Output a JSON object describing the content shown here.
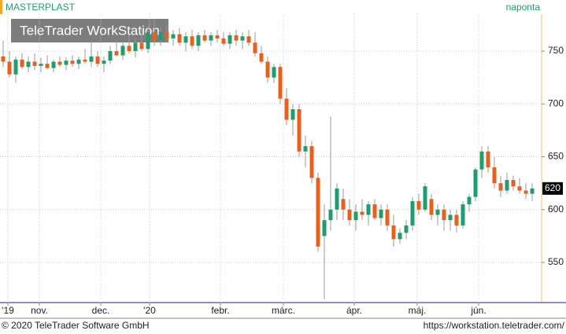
{
  "chart_data": {
    "type": "candlestick",
    "title": "MASTERPLAST",
    "interval": "naponta",
    "watermark": "TeleTrader WorkStation",
    "copyright": "© 2020 TeleTrader Software GmbH",
    "url": "https://workstation.teletrader.com/",
    "up_color": "#1e9e6e",
    "down_color": "#e8601c",
    "ylim": [
      512,
      785
    ],
    "yticks": [
      550,
      600,
      650,
      700,
      750
    ],
    "grid": true,
    "last_value": 620,
    "xlim": [
      -0.5,
      85.5
    ],
    "xticks": [
      {
        "value": 0.75,
        "label": "'19"
      },
      {
        "value": 5.75,
        "label": "nov."
      },
      {
        "value": 15.5,
        "label": "dec."
      },
      {
        "value": 23.25,
        "label": "'20"
      },
      {
        "value": 34.5,
        "label": "febr."
      },
      {
        "value": 44.5,
        "label": "márc."
      },
      {
        "value": 55.75,
        "label": "ápr."
      },
      {
        "value": 65.75,
        "label": "máj."
      },
      {
        "value": 75.5,
        "label": "jún."
      }
    ],
    "candles": [
      [
        745,
        760,
        735,
        740
      ],
      [
        740,
        750,
        725,
        728
      ],
      [
        728,
        745,
        720,
        742
      ],
      [
        742,
        748,
        733,
        735
      ],
      [
        735,
        745,
        730,
        740
      ],
      [
        740,
        748,
        732,
        736
      ],
      [
        736,
        744,
        730,
        738
      ],
      [
        738,
        746,
        733,
        734
      ],
      [
        734,
        742,
        730,
        740
      ],
      [
        740,
        745,
        735,
        737
      ],
      [
        737,
        744,
        732,
        741
      ],
      [
        741,
        746,
        735,
        738
      ],
      [
        738,
        745,
        733,
        742
      ],
      [
        742,
        752,
        738,
        740
      ],
      [
        740,
        760,
        735,
        745
      ],
      [
        745,
        750,
        735,
        738
      ],
      [
        738,
        745,
        730,
        741
      ],
      [
        741,
        755,
        738,
        750
      ],
      [
        750,
        760,
        745,
        746
      ],
      [
        746,
        758,
        742,
        755
      ],
      [
        755,
        765,
        748,
        750
      ],
      [
        750,
        762,
        744,
        758
      ],
      [
        758,
        770,
        750,
        752
      ],
      [
        752,
        775,
        748,
        768
      ],
      [
        768,
        780,
        755,
        760
      ],
      [
        760,
        772,
        755,
        768
      ],
      [
        768,
        775,
        758,
        762
      ],
      [
        762,
        770,
        755,
        766
      ],
      [
        766,
        772,
        755,
        758
      ],
      [
        758,
        768,
        750,
        764
      ],
      [
        764,
        770,
        752,
        755
      ],
      [
        755,
        768,
        750,
        765
      ],
      [
        765,
        770,
        758,
        760
      ],
      [
        760,
        768,
        755,
        765
      ],
      [
        765,
        770,
        758,
        762
      ],
      [
        762,
        768,
        755,
        757
      ],
      [
        757,
        768,
        752,
        765
      ],
      [
        765,
        770,
        755,
        760
      ],
      [
        760,
        768,
        752,
        764
      ],
      [
        764,
        770,
        755,
        758
      ],
      [
        758,
        768,
        745,
        748
      ],
      [
        748,
        755,
        738,
        740
      ],
      [
        740,
        745,
        720,
        725
      ],
      [
        725,
        738,
        720,
        735
      ],
      [
        735,
        738,
        700,
        705
      ],
      [
        705,
        715,
        680,
        685
      ],
      [
        685,
        700,
        670,
        695
      ],
      [
        695,
        700,
        650,
        655
      ],
      [
        655,
        670,
        640,
        660
      ],
      [
        660,
        665,
        625,
        630
      ],
      [
        630,
        635,
        560,
        565
      ],
      [
        575,
        605,
        515,
        590
      ],
      [
        590,
        688,
        580,
        600
      ],
      [
        600,
        625,
        590,
        620
      ],
      [
        610,
        620,
        590,
        600
      ],
      [
        600,
        610,
        585,
        590
      ],
      [
        590,
        605,
        580,
        598
      ],
      [
        598,
        610,
        590,
        595
      ],
      [
        595,
        608,
        585,
        605
      ],
      [
        605,
        610,
        590,
        592
      ],
      [
        592,
        605,
        585,
        600
      ],
      [
        600,
        605,
        580,
        585
      ],
      [
        585,
        595,
        565,
        572
      ],
      [
        572,
        582,
        568,
        578
      ],
      [
        578,
        590,
        572,
        585
      ],
      [
        585,
        612,
        580,
        608
      ],
      [
        608,
        615,
        595,
        600
      ],
      [
        600,
        625,
        598,
        622
      ],
      [
        610,
        615,
        590,
        595
      ],
      [
        595,
        605,
        585,
        600
      ],
      [
        600,
        605,
        580,
        590
      ],
      [
        590,
        600,
        580,
        595
      ],
      [
        595,
        600,
        578,
        585
      ],
      [
        585,
        608,
        582,
        605
      ],
      [
        605,
        615,
        598,
        612
      ],
      [
        612,
        640,
        608,
        638
      ],
      [
        638,
        660,
        630,
        655
      ],
      [
        655,
        660,
        635,
        640
      ],
      [
        640,
        650,
        620,
        625
      ],
      [
        625,
        632,
        612,
        618
      ],
      [
        618,
        635,
        615,
        628
      ],
      [
        628,
        632,
        618,
        622
      ],
      [
        622,
        630,
        615,
        618
      ],
      [
        618,
        625,
        610,
        615
      ],
      [
        615,
        625,
        608,
        620
      ]
    ]
  }
}
